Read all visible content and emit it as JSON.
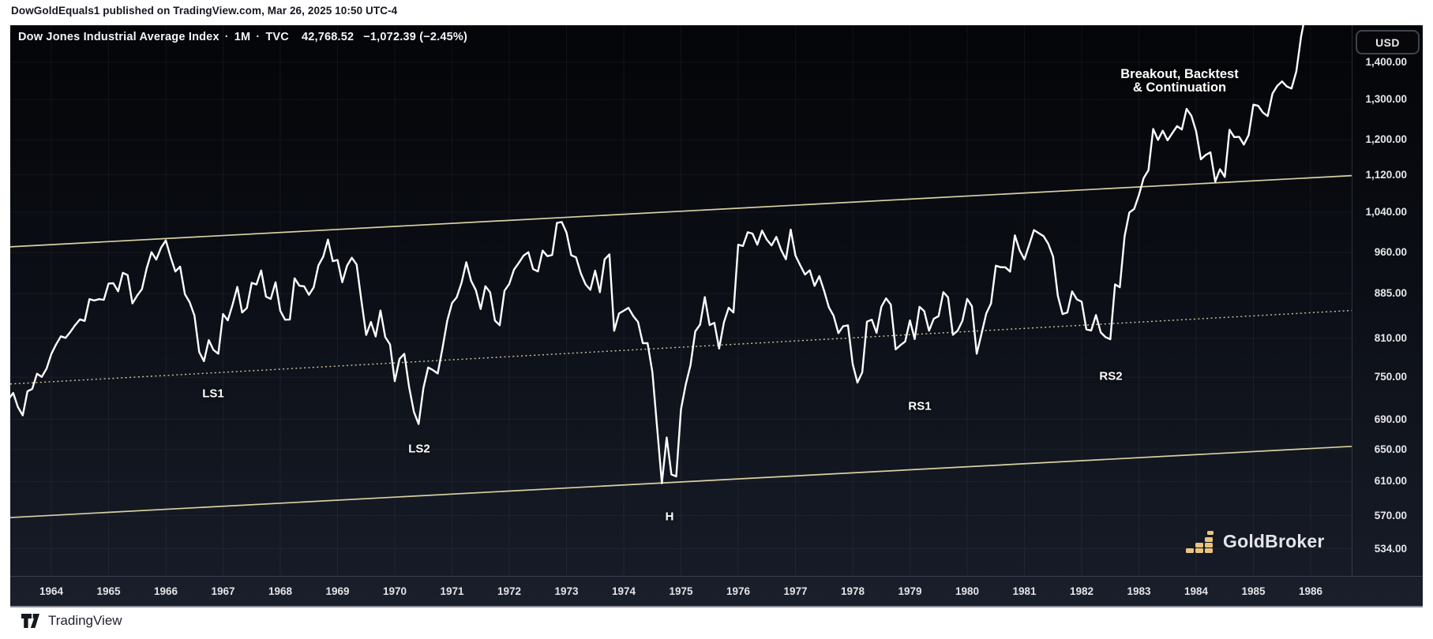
{
  "attribution": "DowGoldEquals1 published on TradingView.com, Mar 26, 2025 10:50 UTC-4",
  "header": {
    "symbol": "Dow Jones Industrial Average Index",
    "separator": "·",
    "interval": "1M",
    "exchange": "TVC",
    "last_price": "42,768.52",
    "change": "−1,072.39 (−2.45%)"
  },
  "axis": {
    "currency_button": "USD"
  },
  "annotations": {
    "breakout_line1": "Breakout, Backtest",
    "breakout_line2": "& Continuation",
    "ls1": "LS1",
    "ls2": "LS2",
    "h": "H",
    "rs1": "RS1",
    "rs2": "RS2"
  },
  "logos": {
    "goldbroker": "GoldBroker",
    "tradingview": "TradingView"
  },
  "chart_data": {
    "type": "line",
    "title": "Dow Jones Industrial Average Index",
    "interval": "1M",
    "scale": "log",
    "line_color": "#ffffff",
    "trendline_color": "#d8d1a3",
    "x_axis_years": [
      1964,
      1965,
      1966,
      1967,
      1968,
      1969,
      1970,
      1971,
      1972,
      1973,
      1974,
      1975,
      1976,
      1977,
      1978,
      1979,
      1980,
      1981,
      1982,
      1983,
      1984,
      1985,
      1986
    ],
    "y_axis_labels": [
      "1,400.00",
      "1,300.00",
      "1,200.00",
      "1,120.00",
      "1,040.00",
      "960.00",
      "885.00",
      "810.00",
      "750.00",
      "690.00",
      "650.00",
      "610.00",
      "570.00",
      "534.00"
    ],
    "y_axis_values": [
      1400,
      1300,
      1200,
      1120,
      1040,
      960,
      885,
      810,
      750,
      690,
      650,
      610,
      570,
      534
    ],
    "x_range_years": [
      1963.28,
      1986.72
    ],
    "y_range_price": [
      506,
      1507
    ],
    "series_start": {
      "year": 1963,
      "month": 4
    },
    "values": [
      717.7,
      726.96,
      706.88,
      695.43,
      729.32,
      732.79,
      755.23,
      750.52,
      762.95,
      785.34,
      800.14,
      813.29,
      810.77,
      820.56,
      831.5,
      841.1,
      838.48,
      875.37,
      873.08,
      875.43,
      874.13,
      902.86,
      903.48,
      889.05,
      922.31,
      918.04,
      868.03,
      881.74,
      893.1,
      930.58,
      960.82,
      946.71,
      969.26,
      983.51,
      951.89,
      924.77,
      933.68,
      884.07,
      870.1,
      847.38,
      788.41,
      774.22,
      807.07,
      791.59,
      785.69,
      849.89,
      839.37,
      865.98,
      897.05,
      852.56,
      860.26,
      904.24,
      901.29,
      926.66,
      879.74,
      875.81,
      905.11,
      855.47,
      840.5,
      840.67,
      912.22,
      899.0,
      897.8,
      883.0,
      896.01,
      935.79,
      952.39,
      985.08,
      943.75,
      946.05,
      905.21,
      935.48,
      950.18,
      937.56,
      873.19,
      815.47,
      836.72,
      813.09,
      855.99,
      812.3,
      800.36,
      744.06,
      777.59,
      785.57,
      736.07,
      700.44,
      683.53,
      734.12,
      764.58,
      760.68,
      755.61,
      794.09,
      838.92,
      868.5,
      878.83,
      904.37,
      941.75,
      907.81,
      891.14,
      858.43,
      898.07,
      887.19,
      839.0,
      831.34,
      890.2,
      902.17,
      928.13,
      940.7,
      954.17,
      960.72,
      929.03,
      924.74,
      963.73,
      953.27,
      955.52,
      1018.21,
      1020.02,
      999.02,
      955.07,
      951.01,
      921.43,
      901.41,
      891.71,
      926.4,
      887.57,
      947.1,
      956.58,
      822.25,
      850.86,
      855.55,
      860.53,
      846.68,
      836.75,
      802.17,
      802.41,
      757.43,
      678.58,
      607.87,
      665.52,
      618.66,
      616.24,
      703.69,
      739.05,
      768.15,
      821.34,
      832.29,
      878.99,
      831.51,
      835.34,
      793.88,
      836.04,
      860.67,
      852.41,
      975.28,
      972.61,
      999.45,
      996.85,
      975.23,
      1002.78,
      984.64,
      973.74,
      990.19,
      964.93,
      947.22,
      1004.65,
      954.37,
      936.42,
      919.13,
      926.9,
      898.66,
      916.3,
      890.07,
      861.49,
      847.11,
      818.35,
      829.7,
      831.17,
      769.92,
      742.12,
      757.36,
      837.32,
      840.61,
      818.95,
      862.27,
      876.82,
      865.82,
      792.45,
      799.03,
      805.01,
      839.22,
      808.82,
      862.18,
      854.9,
      822.33,
      841.98,
      846.42,
      887.63,
      878.58,
      815.7,
      822.35,
      838.74,
      875.85,
      863.14,
      785.75,
      817.06,
      850.85,
      867.92,
      935.32,
      932.59,
      932.42,
      924.49,
      993.34,
      963.99,
      947.27,
      974.58,
      1003.87,
      997.75,
      991.75,
      976.88,
      952.34,
      881.47,
      849.98,
      852.55,
      888.98,
      875.0,
      871.1,
      824.39,
      822.77,
      848.36,
      819.54,
      811.93,
      808.6,
      901.31,
      896.25,
      991.72,
      1039.28,
      1046.54,
      1075.7,
      1112.62,
      1130.03,
      1226.2,
      1199.98,
      1221.96,
      1199.22,
      1216.16,
      1233.13,
      1225.2,
      1276.02,
      1258.64,
      1220.58,
      1154.63,
      1164.89,
      1170.75,
      1104.85,
      1132.4,
      1115.28,
      1224.38,
      1206.71,
      1207.38,
      1188.94,
      1211.57,
      1286.77,
      1284.01,
      1266.78,
      1258.06,
      1315.41,
      1335.46,
      1347.45,
      1334.01,
      1328.63,
      1374.31,
      1472.13,
      1546.67,
      1570.99
    ],
    "trendlines": [
      {
        "name": "channel-top",
        "style": "solid",
        "t1": 1963.283,
        "p1": 971,
        "t2": 1986.717,
        "p2": 1118
      },
      {
        "name": "channel-middle",
        "style": "dotted",
        "t1": 1963.283,
        "p1": 740,
        "t2": 1986.717,
        "p2": 856
      },
      {
        "name": "channel-bottom",
        "style": "solid",
        "t1": 1963.283,
        "p1": 568,
        "t2": 1986.717,
        "p2": 654
      }
    ]
  }
}
